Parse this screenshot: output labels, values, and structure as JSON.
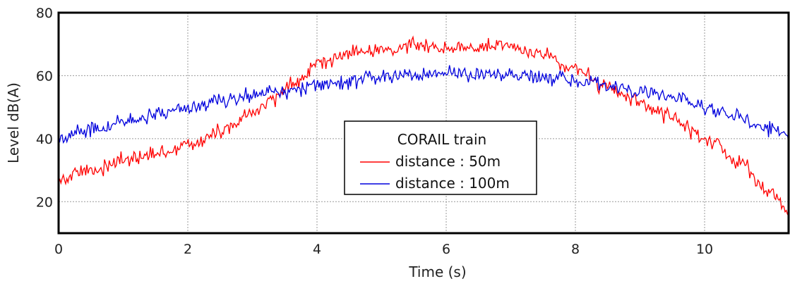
{
  "chart_data": {
    "type": "line",
    "xlabel": "Time (s)",
    "ylabel": "Level dB(A)",
    "xlim": [
      0,
      11.3
    ],
    "ylim": [
      10,
      80
    ],
    "x_ticks": [
      0,
      2,
      4,
      6,
      8,
      10
    ],
    "y_ticks": [
      20,
      40,
      60,
      80
    ],
    "grid": true,
    "legend": {
      "title": "CORAIL train",
      "placement": "center-bottom"
    },
    "series": [
      {
        "name": "distance : 50m",
        "color": "#ff0000",
        "x": [
          0,
          0.5,
          1.0,
          1.5,
          2.0,
          2.5,
          3.0,
          3.3,
          3.6,
          4.0,
          4.5,
          5.0,
          5.5,
          6.0,
          6.5,
          7.0,
          7.5,
          8.0,
          8.5,
          9.0,
          9.5,
          10.0,
          10.5,
          11.0,
          11.3
        ],
        "values": [
          27,
          30,
          33,
          35,
          38,
          42,
          48,
          52,
          57,
          64,
          67,
          68,
          70,
          69,
          69,
          69,
          67,
          62,
          56,
          51,
          47,
          40,
          33,
          23,
          17
        ]
      },
      {
        "name": "distance : 100m",
        "color": "#0000dd",
        "x": [
          0,
          0.5,
          1.0,
          1.5,
          2.0,
          2.5,
          3.0,
          3.5,
          4.0,
          4.5,
          5.0,
          5.5,
          6.0,
          6.5,
          7.0,
          7.5,
          8.0,
          8.5,
          9.0,
          9.5,
          10.0,
          10.5,
          11.0,
          11.3
        ],
        "values": [
          40,
          43,
          45,
          48,
          50,
          52,
          54,
          55,
          57,
          58,
          60,
          60,
          61,
          60,
          60,
          59,
          58,
          57,
          55,
          53,
          50,
          47,
          43,
          40
        ]
      }
    ]
  }
}
